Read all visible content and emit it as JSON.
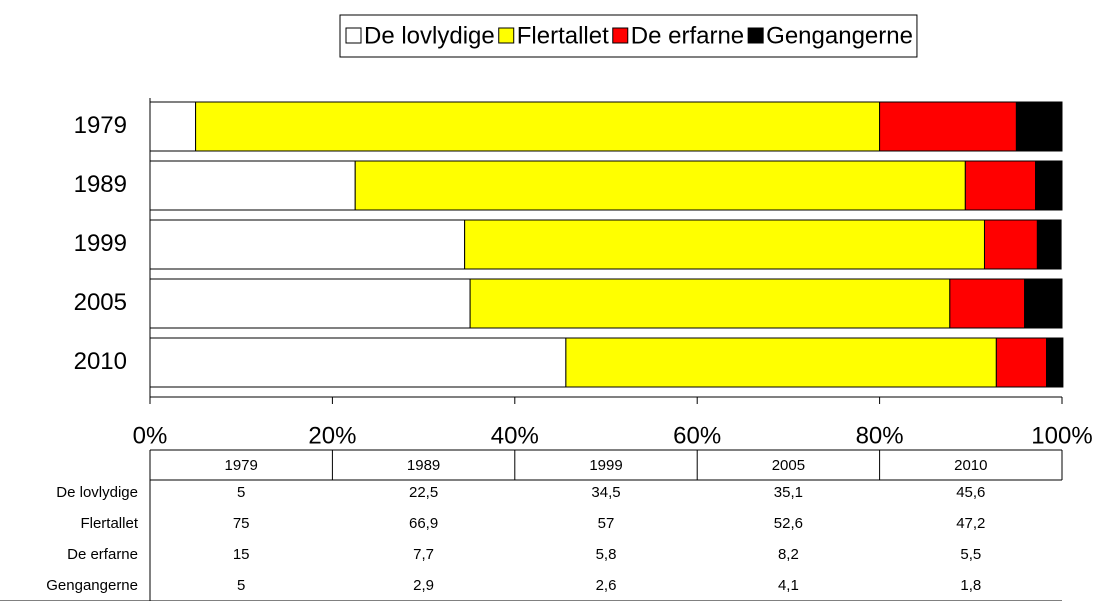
{
  "chart_data": {
    "type": "stacked_bar_horizontal",
    "categories": [
      "1979",
      "1989",
      "1999",
      "2005",
      "2010"
    ],
    "series": [
      {
        "name": "De lovlydige",
        "color": "#ffffff",
        "values": [
          5,
          22.5,
          34.5,
          35.1,
          45.6
        ],
        "value_labels": [
          "5",
          "22,5",
          "34,5",
          "35,1",
          "45,6"
        ]
      },
      {
        "name": "Flertallet",
        "color": "#ffff00",
        "values": [
          75,
          66.9,
          57,
          52.6,
          47.2
        ],
        "value_labels": [
          "75",
          "66,9",
          "57",
          "52,6",
          "47,2"
        ]
      },
      {
        "name": "De erfarne",
        "color": "#ff0000",
        "values": [
          15,
          7.7,
          5.8,
          8.2,
          5.5
        ],
        "value_labels": [
          "15",
          "7,7",
          "5,8",
          "8,2",
          "5,5"
        ]
      },
      {
        "name": "Gengangerne",
        "color": "#000000",
        "values": [
          5,
          2.9,
          2.6,
          4.1,
          1.8
        ],
        "value_labels": [
          "5",
          "2,9",
          "2,6",
          "4,1",
          "1,8"
        ]
      }
    ],
    "xlim": [
      0,
      100
    ],
    "xticks": [
      {
        "value": 0,
        "label": "0%"
      },
      {
        "value": 20,
        "label": "20%"
      },
      {
        "value": 40,
        "label": "40%"
      },
      {
        "value": 60,
        "label": "60%"
      },
      {
        "value": 80,
        "label": "80%"
      },
      {
        "value": 100,
        "label": "100%"
      }
    ],
    "legend": "top"
  }
}
